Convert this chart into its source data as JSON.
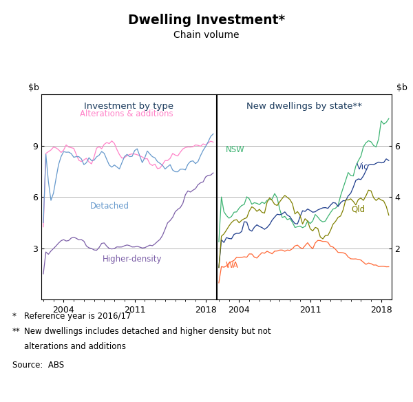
{
  "title": "Dwelling Investment*",
  "subtitle": "Chain volume",
  "left_panel_title": "Investment by type",
  "right_panel_title": "New dwellings by state**",
  "ylim_left": [
    0,
    12
  ],
  "ylim_right": [
    0,
    8
  ],
  "yticks_left": [
    0,
    3,
    6,
    9
  ],
  "yticks_right": [
    0,
    2,
    4,
    6
  ],
  "colors": {
    "alterations": "#FF82C8",
    "detached": "#6699CC",
    "higher_density": "#7B5EA7",
    "nsw": "#3CB371",
    "vic": "#1B3A8A",
    "qld": "#808000",
    "wa": "#FF6633"
  },
  "label_color": "#1a3a5c"
}
